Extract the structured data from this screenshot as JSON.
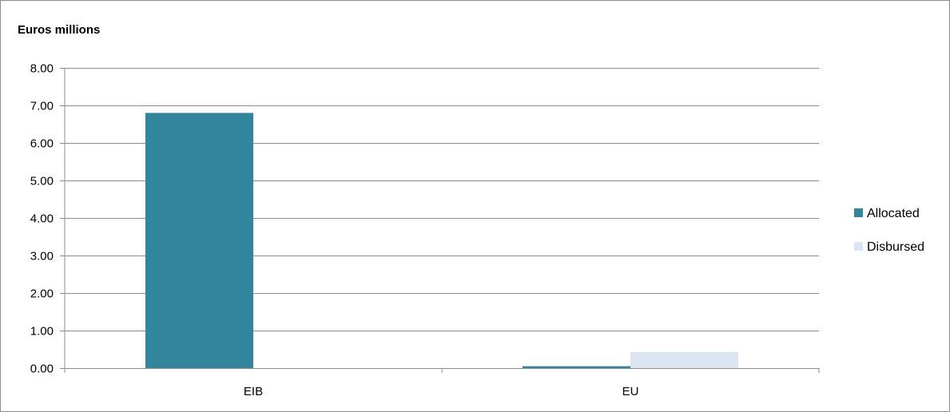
{
  "chart_data": {
    "type": "bar",
    "title": "",
    "ylabel": "Euros millions",
    "xlabel": "",
    "categories": [
      "EIB",
      "EU"
    ],
    "series": [
      {
        "name": "Allocated",
        "values": [
          6.8,
          0.05
        ],
        "color": "#31859c"
      },
      {
        "name": "Disbursed",
        "values": [
          0,
          0.43
        ],
        "color": "#dce6f2"
      }
    ],
    "ylim": [
      0,
      8
    ],
    "yticks": [
      "0.00",
      "1.00",
      "2.00",
      "3.00",
      "4.00",
      "5.00",
      "6.00",
      "7.00",
      "8.00"
    ],
    "grid": true,
    "legend_position": "right"
  }
}
